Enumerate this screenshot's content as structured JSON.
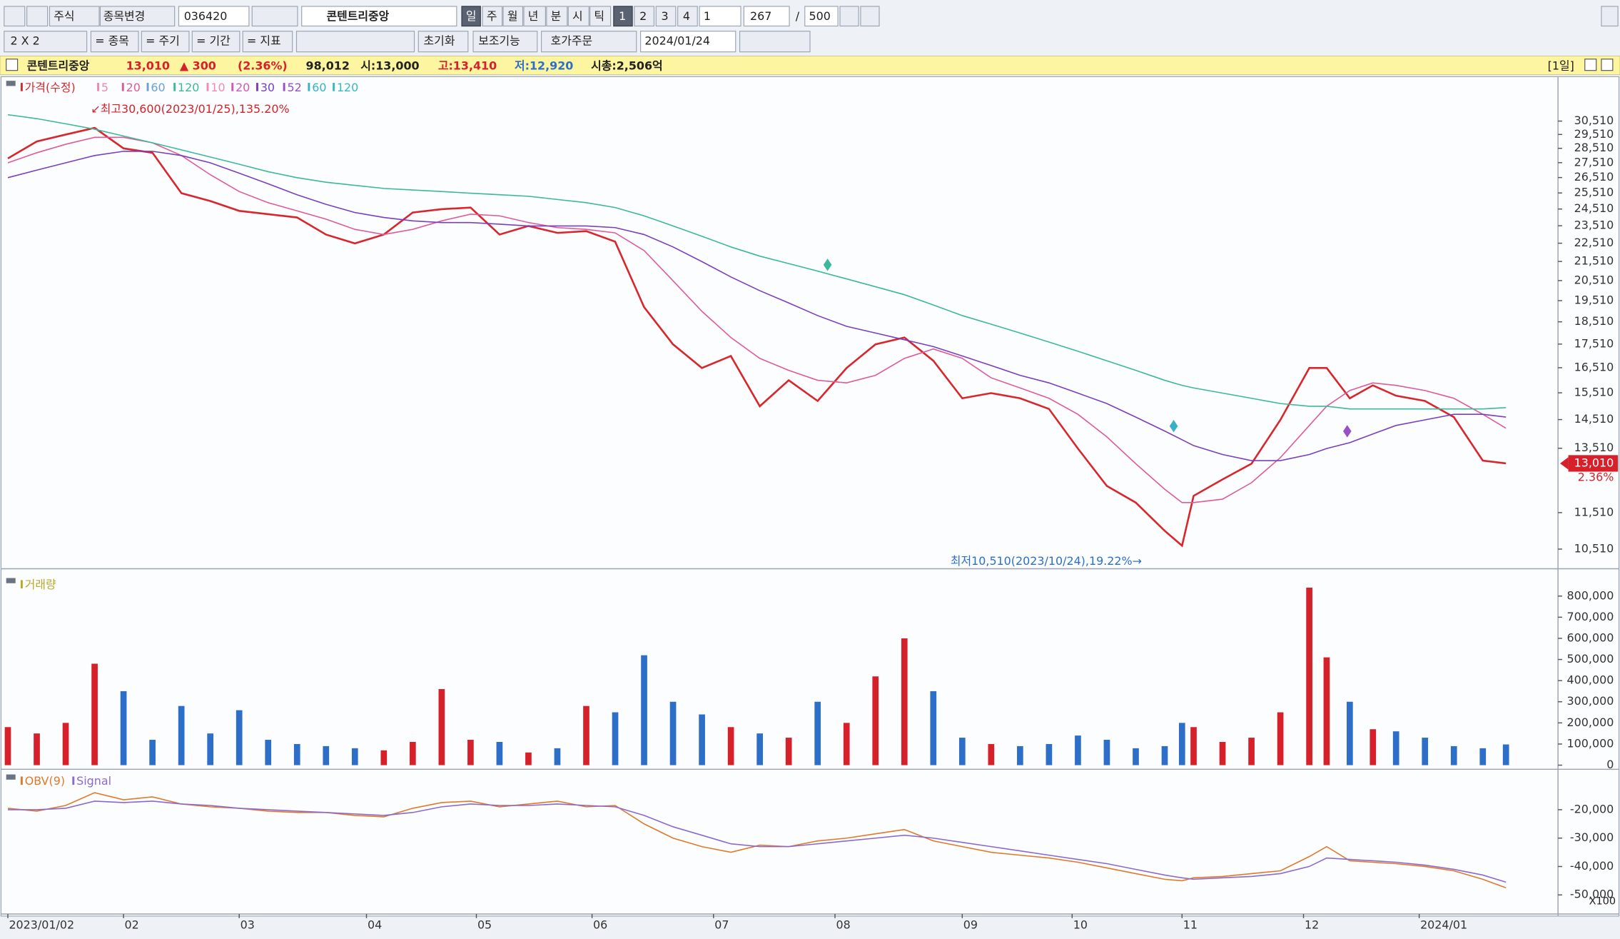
{
  "toolbar": {
    "row1": [
      "주식",
      "종목변경",
      "036420",
      "콘텐트리중앙",
      "일",
      "주",
      "월",
      "년",
      "분",
      "시",
      "틱",
      "1",
      "2",
      "3",
      "4",
      "1",
      "267",
      "/",
      "500"
    ],
    "row2": [
      "2 X 2",
      "= 종목",
      "= 주기",
      "= 기간",
      "= 지표",
      "초기화",
      "보조기능",
      "호가주문",
      "2024/01/24"
    ]
  },
  "info": {
    "name": "콘텐트리중앙",
    "price": "13,010",
    "change": "▲ 300",
    "pct": "(2.36%)",
    "volume": "98,012",
    "open": "시:13,000",
    "high": "고:13,410",
    "low": "저:12,920",
    "cap": "시총:2,506억",
    "period": "[1일]"
  },
  "chart_data": [
    {
      "type": "line",
      "log": true,
      "legend": [
        {
          "label": "가격(수정)",
          "color": "#d9262c"
        },
        {
          "label": "5",
          "color": "#e98bb0"
        },
        {
          "label": "20",
          "color": "#e05a9a"
        },
        {
          "label": "60",
          "color": "#6aa0d8"
        },
        {
          "label": "120",
          "color": "#3cb89a"
        },
        {
          "label": "10",
          "color": "#f08ab8"
        },
        {
          "label": "20",
          "color": "#d257b8"
        },
        {
          "label": "30",
          "color": "#7a3fc0"
        },
        {
          "label": "52",
          "color": "#9650c8"
        },
        {
          "label": "60",
          "color": "#36b2c8"
        },
        {
          "label": "120",
          "color": "#35b8c0"
        }
      ],
      "annotation_high": "↙최고30,600(2023/01/25),135.20%",
      "annotation_low": "최저10,510(2023/10/24),19.22%→",
      "last_label": "13,010",
      "last_change": "2.36%",
      "x": [
        0,
        5,
        10,
        15,
        20,
        25,
        30,
        35,
        40,
        45,
        50,
        55,
        60,
        65,
        70,
        75,
        80,
        85,
        90,
        95,
        100,
        105,
        110,
        115,
        120,
        125,
        130,
        135,
        140,
        145,
        150,
        155,
        160,
        165,
        170,
        175,
        180,
        185,
        190,
        195,
        200,
        203,
        205,
        210,
        215,
        220,
        225,
        228,
        232,
        236,
        240,
        245,
        250,
        255,
        259
      ],
      "xlim": [
        -1,
        268
      ],
      "ylim": [
        10060,
        33990
      ],
      "yticks": [
        {
          "value": 30510,
          "label": "30,510"
        },
        {
          "value": 29510,
          "label": "29,510"
        },
        {
          "value": 28510,
          "label": "28,510"
        },
        {
          "value": 27510,
          "label": "27,510"
        },
        {
          "value": 26510,
          "label": "26,510"
        },
        {
          "value": 25510,
          "label": "25,510"
        },
        {
          "value": 24510,
          "label": "24,510"
        },
        {
          "value": 23510,
          "label": "23,510"
        },
        {
          "value": 22510,
          "label": "22,510"
        },
        {
          "value": 21510,
          "label": "21,510"
        },
        {
          "value": 20510,
          "label": "20,510"
        },
        {
          "value": 19510,
          "label": "19,510"
        },
        {
          "value": 18510,
          "label": "18,510"
        },
        {
          "value": 17510,
          "label": "17,510"
        },
        {
          "value": 16510,
          "label": "16,510"
        },
        {
          "value": 15510,
          "label": "15,510"
        },
        {
          "value": 14510,
          "label": "14,510"
        },
        {
          "value": 13510,
          "label": "13,510"
        },
        {
          "value": 11510,
          "label": "11,510"
        },
        {
          "value": 10510,
          "label": "10,510"
        }
      ],
      "series": [
        {
          "color": "#d9262c",
          "values": [
            27800,
            29000,
            29500,
            30000,
            28500,
            28200,
            25500,
            25000,
            24400,
            24200,
            24000,
            23000,
            22500,
            23000,
            24300,
            24500,
            24600,
            23000,
            23500,
            23100,
            23200,
            22600,
            19200,
            17500,
            16500,
            17000,
            15000,
            16000,
            15200,
            16500,
            17500,
            17800,
            16800,
            15300,
            15500,
            15300,
            14900,
            13500,
            12300,
            11800,
            11000,
            10600,
            12000,
            12500,
            13000,
            14500,
            16500,
            16500,
            15300,
            15800,
            15400,
            15200,
            14600,
            13100,
            13010
          ]
        },
        {
          "color": "#e05a9a",
          "values": [
            27500,
            28200,
            28800,
            29300,
            29300,
            28900,
            28000,
            26700,
            25600,
            24900,
            24400,
            23900,
            23300,
            23000,
            23300,
            23800,
            24200,
            24100,
            23700,
            23400,
            23300,
            23100,
            22100,
            20500,
            19000,
            17800,
            16900,
            16400,
            16000,
            15900,
            16200,
            16900,
            17300,
            16900,
            16100,
            15700,
            15300,
            14700,
            13900,
            13000,
            12200,
            11800,
            11800,
            11900,
            12400,
            13200,
            14300,
            15000,
            15600,
            15900,
            15800,
            15600,
            15300,
            14700,
            14200
          ]
        },
        {
          "color": "#7a3fc0",
          "values": [
            26500,
            27000,
            27500,
            28000,
            28300,
            28300,
            28000,
            27500,
            26800,
            26100,
            25400,
            24800,
            24300,
            24000,
            23800,
            23700,
            23700,
            23600,
            23500,
            23500,
            23500,
            23400,
            23000,
            22300,
            21500,
            20700,
            20000,
            19400,
            18800,
            18300,
            18000,
            17700,
            17400,
            17000,
            16600,
            16200,
            15900,
            15500,
            15100,
            14600,
            14100,
            13800,
            13600,
            13300,
            13100,
            13100,
            13300,
            13500,
            13700,
            14000,
            14300,
            14500,
            14700,
            14700,
            14600
          ]
        },
        {
          "color": "#3cb89a",
          "values": [
            31000,
            30700,
            30300,
            29900,
            29400,
            28900,
            28400,
            27900,
            27400,
            26900,
            26500,
            26200,
            26000,
            25800,
            25700,
            25600,
            25500,
            25400,
            25300,
            25100,
            24900,
            24600,
            24100,
            23500,
            22900,
            22300,
            21800,
            21400,
            21000,
            20600,
            20200,
            19800,
            19300,
            18800,
            18400,
            18000,
            17600,
            17200,
            16800,
            16400,
            16000,
            15800,
            15700,
            15500,
            15300,
            15100,
            15000,
            15000,
            14900,
            14900,
            14900,
            14900,
            14900,
            14900,
            14950
          ]
        }
      ]
    },
    {
      "type": "bar",
      "legend": [
        {
          "label": "거래량",
          "color": "#b8a82a"
        }
      ],
      "up_color": "#d6212a",
      "down_color": "#2d6fc8",
      "x": [
        0,
        5,
        10,
        15,
        20,
        25,
        30,
        35,
        40,
        45,
        50,
        55,
        60,
        65,
        70,
        75,
        80,
        85,
        90,
        95,
        100,
        105,
        110,
        115,
        120,
        125,
        130,
        135,
        140,
        145,
        150,
        155,
        160,
        165,
        170,
        175,
        180,
        185,
        190,
        195,
        200,
        203,
        205,
        210,
        215,
        220,
        225,
        228,
        232,
        236,
        240,
        245,
        250,
        255,
        259
      ],
      "xlim": [
        -1,
        268
      ],
      "values": [
        180000,
        150000,
        200000,
        480000,
        350000,
        120000,
        280000,
        150000,
        260000,
        120000,
        100000,
        90000,
        80000,
        70000,
        110000,
        360000,
        120000,
        110000,
        60000,
        80000,
        280000,
        250000,
        520000,
        300000,
        240000,
        180000,
        150000,
        130000,
        300000,
        200000,
        420000,
        600000,
        350000,
        130000,
        100000,
        90000,
        100000,
        140000,
        120000,
        80000,
        90000,
        200000,
        180000,
        110000,
        130000,
        250000,
        840000,
        510000,
        300000,
        170000,
        160000,
        130000,
        90000,
        80000,
        98012
      ],
      "ylim": [
        0,
        900000
      ],
      "yticks": [
        {
          "value": 800000,
          "label": "800,000"
        },
        {
          "value": 700000,
          "label": "700,000"
        },
        {
          "value": 600000,
          "label": "600,000"
        },
        {
          "value": 500000,
          "label": "500,000"
        },
        {
          "value": 400000,
          "label": "400,000"
        },
        {
          "value": 300000,
          "label": "300,000"
        },
        {
          "value": 200000,
          "label": "200,000"
        },
        {
          "value": 100000,
          "label": "100,000"
        },
        0
      ]
    },
    {
      "type": "line",
      "legend": [
        {
          "label": "OBV(9)",
          "color": "#e07a2a"
        },
        {
          "label": "Signal",
          "color": "#8a6ad0"
        }
      ],
      "unit": "X100",
      "x": [
        0,
        5,
        10,
        15,
        20,
        25,
        30,
        35,
        40,
        45,
        50,
        55,
        60,
        65,
        70,
        75,
        80,
        85,
        90,
        95,
        100,
        105,
        110,
        115,
        120,
        125,
        130,
        135,
        140,
        145,
        150,
        155,
        160,
        165,
        170,
        175,
        180,
        185,
        190,
        195,
        200,
        203,
        205,
        210,
        215,
        220,
        225,
        228,
        232,
        236,
        240,
        245,
        250,
        255,
        259
      ],
      "xlim": [
        -1,
        268
      ],
      "ylim": [
        -56000,
        -6500
      ],
      "yticks": [
        {
          "value": -20000,
          "label": "-20,000"
        },
        {
          "value": -30000,
          "label": "-30,000"
        },
        {
          "value": -40000,
          "label": "-40,000"
        },
        {
          "value": -50000,
          "label": "-50,000"
        }
      ],
      "xticks": [
        {
          "value": 0,
          "label": "2023/01/02"
        },
        {
          "value": 20,
          "label": "02"
        },
        {
          "value": 40,
          "label": "03"
        },
        {
          "value": 62,
          "label": "04"
        },
        {
          "value": 81,
          "label": "05"
        },
        {
          "value": 101,
          "label": "06"
        },
        {
          "value": 122,
          "label": "07"
        },
        {
          "value": 143,
          "label": "08"
        },
        {
          "value": 165,
          "label": "09"
        },
        {
          "value": 184,
          "label": "10"
        },
        {
          "value": 203,
          "label": "11"
        },
        {
          "value": 224,
          "label": "12"
        },
        {
          "value": 244,
          "label": "2024/01"
        }
      ],
      "series": [
        {
          "color": "#e07a2a",
          "values": [
            -19500,
            -20500,
            -18500,
            -14000,
            -16500,
            -15500,
            -18000,
            -19000,
            -19500,
            -20500,
            -21000,
            -21000,
            -22000,
            -22500,
            -19500,
            -17500,
            -17000,
            -19000,
            -18000,
            -17000,
            -19000,
            -18500,
            -25000,
            -30000,
            -33000,
            -35000,
            -32500,
            -33000,
            -31000,
            -30000,
            -28500,
            -27000,
            -31000,
            -33000,
            -35000,
            -36000,
            -37000,
            -38500,
            -40500,
            -42500,
            -44500,
            -45000,
            -44000,
            -43500,
            -42500,
            -41500,
            -36500,
            -33000,
            -38000,
            -38500,
            -39000,
            -40000,
            -41500,
            -44500,
            -47500
          ]
        },
        {
          "color": "#8a6ad0",
          "values": [
            -20000,
            -20000,
            -19500,
            -17000,
            -17500,
            -17000,
            -18000,
            -18500,
            -19500,
            -20000,
            -20500,
            -21000,
            -21500,
            -22000,
            -21000,
            -19000,
            -18000,
            -18500,
            -18500,
            -18000,
            -18500,
            -19000,
            -22000,
            -26000,
            -29000,
            -32000,
            -33000,
            -33000,
            -32000,
            -31000,
            -30000,
            -29000,
            -30000,
            -31500,
            -33000,
            -34500,
            -36000,
            -37500,
            -39000,
            -41000,
            -43000,
            -44000,
            -44500,
            -44000,
            -43500,
            -42500,
            -40000,
            -37000,
            -37500,
            -38000,
            -38500,
            -39500,
            -41000,
            -43000,
            -45500
          ]
        }
      ]
    }
  ]
}
